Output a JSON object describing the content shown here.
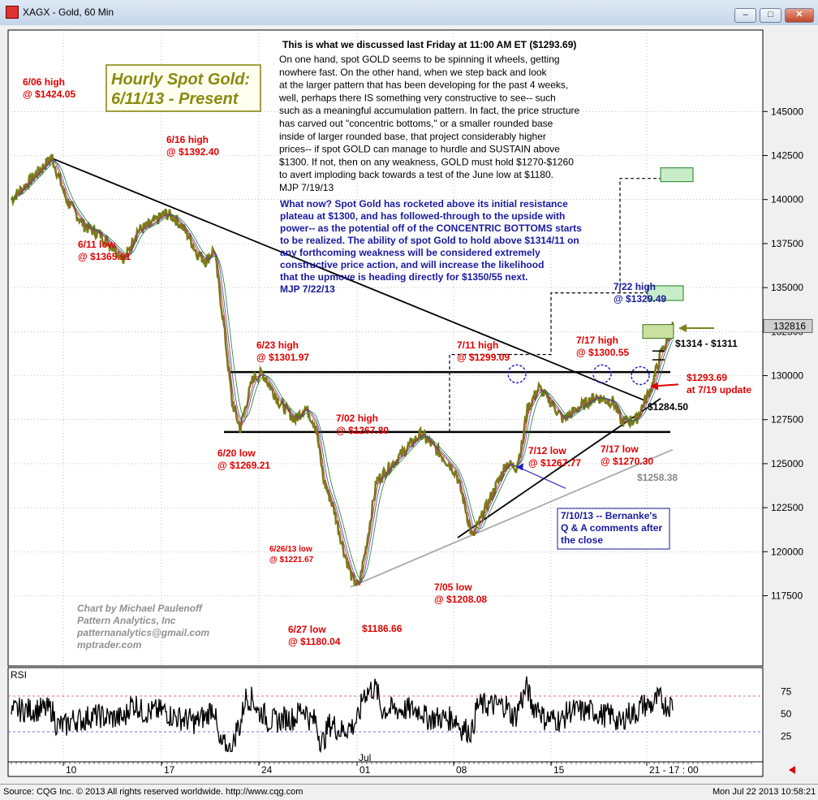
{
  "window": {
    "title": "XAGX - Gold, 60 Min",
    "minimize_icon": "minimize-icon",
    "restore_icon": "restore-icon",
    "close_icon": "close-icon"
  },
  "footer": {
    "source": "Source: CQG Inc. © 2013 All rights reserved worldwide. http://www.cqg.com",
    "timestamp": "Mon Jul 22 2013 10:58:21"
  },
  "chart_data": {
    "type": "line",
    "title": "Hourly Spot Gold:",
    "subtitle": "6/11/13 - Present",
    "price_axis": {
      "min": 1160,
      "max": 1460,
      "ticks": [
        "117500",
        "120000",
        "122500",
        "125000",
        "127500",
        "130000",
        "132500",
        "135000",
        "137500",
        "140000",
        "142500",
        "145000"
      ],
      "current_label": "132816",
      "current_value": 1328.16
    },
    "x_axis": {
      "labels": [
        "10",
        "17",
        "24",
        "01",
        "08",
        "15",
        "21 - 17 : 00"
      ],
      "month_label": "Jul"
    },
    "price_series": {
      "x": [
        0,
        26,
        50,
        68,
        90,
        110,
        128,
        140,
        155,
        172,
        190,
        200,
        210,
        220,
        228,
        240,
        250,
        262,
        272,
        282,
        290,
        298,
        310,
        330,
        350,
        362,
        375,
        385,
        397,
        410,
        420,
        428,
        438,
        450,
        470,
        490,
        505,
        530,
        548,
        558,
        568,
        580,
        595,
        610,
        622,
        630,
        635,
        650,
        665,
        680,
        700,
        720,
        742,
        752,
        770,
        790,
        800,
        808,
        815
      ],
      "close": [
        1400,
        1412,
        1424,
        1400,
        1385,
        1380,
        1372,
        1366,
        1382,
        1386,
        1392,
        1390,
        1385,
        1378,
        1370,
        1365,
        1372,
        1328,
        1285,
        1270,
        1285,
        1299,
        1301,
        1285,
        1275,
        1282,
        1272,
        1240,
        1225,
        1200,
        1185,
        1180,
        1205,
        1240,
        1250,
        1260,
        1267,
        1255,
        1245,
        1228,
        1208,
        1220,
        1235,
        1250,
        1248,
        1262,
        1280,
        1293,
        1285,
        1275,
        1282,
        1288,
        1285,
        1274,
        1275,
        1295,
        1312,
        1320,
        1328
      ]
    },
    "rsi": {
      "label": "RSI",
      "ticks": [
        "25",
        "50",
        "75"
      ],
      "overbought": 70,
      "oversold": 30
    },
    "trendlines": [
      {
        "name": "declining-resistance",
        "from": [
          47,
          1424
        ],
        "to": [
          780,
          1286
        ]
      },
      {
        "name": "support-1300",
        "from": [
          270,
          1302
        ],
        "to": [
          812,
          1302
        ]
      },
      {
        "name": "support-1268",
        "from": [
          262,
          1268
        ],
        "to": [
          812,
          1268
        ]
      },
      {
        "name": "rising-support",
        "from": [
          550,
          1208
        ],
        "to": [
          800,
          1287
        ]
      },
      {
        "name": "lower-support",
        "from": [
          418,
          1180
        ],
        "to": [
          815,
          1258
        ]
      }
    ],
    "annotations": [
      {
        "id": "jun06",
        "lines": [
          "6/06 high",
          "@ $1424.05"
        ]
      },
      {
        "id": "jun16",
        "lines": [
          "6/16 high",
          "@ $1392.40"
        ]
      },
      {
        "id": "jun11",
        "lines": [
          "6/11 low",
          "@ $1365.91"
        ]
      },
      {
        "id": "jun23",
        "lines": [
          "6/23 high",
          "@ $1301.97"
        ]
      },
      {
        "id": "jun20",
        "lines": [
          "6/20 low",
          "@ $1269.21"
        ]
      },
      {
        "id": "jul02",
        "lines": [
          "7/02 high",
          "@ $1267.80"
        ]
      },
      {
        "id": "jun26",
        "lines": [
          "6/26/13 low",
          "@ $1221.67"
        ]
      },
      {
        "id": "jun27",
        "lines": [
          "6/27 low",
          "@ $1180.04"
        ]
      },
      {
        "id": "p118666",
        "lines": [
          "$1186.66"
        ]
      },
      {
        "id": "jul05",
        "lines": [
          "7/05 low",
          "@ $1208.08"
        ]
      },
      {
        "id": "jul11",
        "lines": [
          "7/11 high",
          "@ $1299.09"
        ]
      },
      {
        "id": "jul12",
        "lines": [
          "7/12 low",
          "@ $1267.77"
        ]
      },
      {
        "id": "jul17h",
        "lines": [
          "7/17 high",
          "@ $1300.55"
        ]
      },
      {
        "id": "jul17l",
        "lines": [
          "7/17 low",
          "@ $1270.30"
        ]
      },
      {
        "id": "jul22",
        "lines": [
          "7/22 high",
          "@ $1329.49"
        ]
      },
      {
        "id": "p1314",
        "lines": [
          "$1314 - $1311"
        ]
      },
      {
        "id": "p1293",
        "lines": [
          "$1293.69",
          "at 7/19 update"
        ]
      },
      {
        "id": "p1284",
        "lines": [
          "$1284.50"
        ]
      },
      {
        "id": "p1258",
        "lines": [
          "$1258.38"
        ]
      },
      {
        "id": "bernanke",
        "lines": [
          "7/10/13 -- Bernanke's",
          "Q & A comments after",
          "the close"
        ]
      }
    ],
    "commentary_1": {
      "heading": "This is what we discussed last Friday at 11:00 AM ET ($1293.69)",
      "lines": [
        "On one hand, spot GOLD seems to be spinning it wheels, getting",
        "nowhere fast. On the other hand, when we step back and look",
        "at the larger pattern that has been developing for the past 4 weeks,",
        "well, perhaps there IS something very constructive to see-- such",
        "such as a meaningful accumulation pattern.  In fact, the price structure",
        "has carved out \"concentric bottoms,\" or a smaller rounded base",
        "inside of larger rounded base, that project considerably higher",
        "prices-- if spot GOLD can manage to hurdle and SUSTAIN above",
        "$1300.  If not, then on any weakness, GOLD must hold $1270-$1260",
        "to avert imploding back towards a test of the June low at $1180.",
        "MJP  7/19/13"
      ]
    },
    "commentary_2": {
      "lines": [
        "What now?  Spot Gold has rocketed above its initial resistance",
        "plateau at $1300, and has followed-through to the upside with",
        "power-- as the potential off of the CONCENTRIC BOTTOMS starts",
        "to be realized.  The ability of spot Gold to hold above $1314/11 on",
        "any forthcoming weakness will be considered extremely",
        "constructive price action, and will increase the likelihood",
        "that the upmove is heading directly for $1350/55 next.",
        "MJP  7/22/13"
      ]
    },
    "credits": [
      "Chart by Michael Paulenoff",
      "Pattern Analytics, Inc",
      "patternanalytics@gmail.com",
      "mptrader.com"
    ],
    "colors": {
      "price": "#7a7a1a",
      "annotation": "#e00000",
      "commentary_2": "#1a1aa0",
      "title": "#8a8a10",
      "grid": "#999999",
      "trend": "#000000",
      "lower_trend": "#aaaaaa"
    }
  }
}
